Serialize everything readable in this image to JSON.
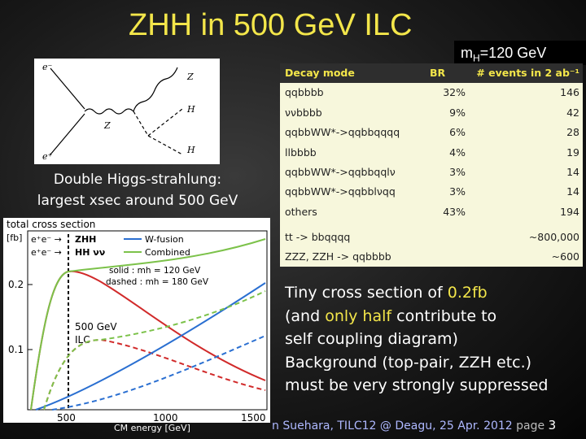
{
  "title": "ZHH in 500 GeV ILC",
  "mass_label": {
    "prefix": "m",
    "sub": "H",
    "suffix": "=120 GeV"
  },
  "feynman": {
    "labels": {
      "em": "e⁻",
      "ep": "e⁺",
      "z_star": "Z",
      "z_out": "Z",
      "h1": "H",
      "h2": "H"
    }
  },
  "double_higgs_text": [
    "Double Higgs-strahlung:",
    "largest xsec around 500 GeV"
  ],
  "xsec_plot": {
    "title": "total cross section",
    "unit": "[fb]",
    "yticks": [
      "0.2",
      "0.1"
    ],
    "xticks": [
      "500",
      "1000",
      "1500"
    ],
    "xlabel": "CM energy  [GeV]",
    "legend": [
      "ZHH",
      "HH νν",
      "W-fusion",
      "Combined"
    ],
    "legend_prefix": [
      "e⁺e⁻ →",
      "e⁺e⁻ →"
    ],
    "annot_solid": "solid :  mh = 120 GeV",
    "annot_dashed": "dashed :  mh = 180 GeV",
    "ilc_label": [
      "500 GeV",
      "ILC"
    ],
    "colors": {
      "zhh": "#d12a2a",
      "wfusion": "#2a6fd1",
      "combined": "#7cc24a"
    }
  },
  "table": {
    "headers": [
      "Decay mode",
      "BR",
      "# events in 2 ab⁻¹"
    ],
    "rows": [
      {
        "mode": "qqbbbb",
        "br": "32%",
        "events": "146"
      },
      {
        "mode": "ννbbbb",
        "br": "9%",
        "events": "42"
      },
      {
        "mode": "qqbbWW*->qqbbqqqq",
        "br": "6%",
        "events": "28"
      },
      {
        "mode": "llbbbb",
        "br": "4%",
        "events": "19"
      },
      {
        "mode": "qqbbWW*->qqbbqqlν",
        "br": "3%",
        "events": "14"
      },
      {
        "mode": "qqbbWW*->qqbblνqq",
        "br": "3%",
        "events": "14"
      },
      {
        "mode": "others",
        "br": "43%",
        "events": "194"
      }
    ],
    "background": [
      {
        "mode": "tt -> bbqqqq",
        "events": "~800,000"
      },
      {
        "mode": "ZZZ, ZZH -> qqbbbb",
        "events": "~600"
      }
    ]
  },
  "text_block": {
    "l1a": "Tiny cross section of ",
    "l1b": "0.2fb",
    "l2a": "(and ",
    "l2b": "only half",
    "l2c": " contribute to",
    "l3": "self coupling diagram)",
    "l4": "Background (top-pair, ZZH etc.)",
    "l5": "must be very strongly suppressed"
  },
  "footer": {
    "author": "n Suehara, TILC12 @ Deagu, 25 Apr. 2012",
    "page_word": "page",
    "page_num": "3"
  }
}
